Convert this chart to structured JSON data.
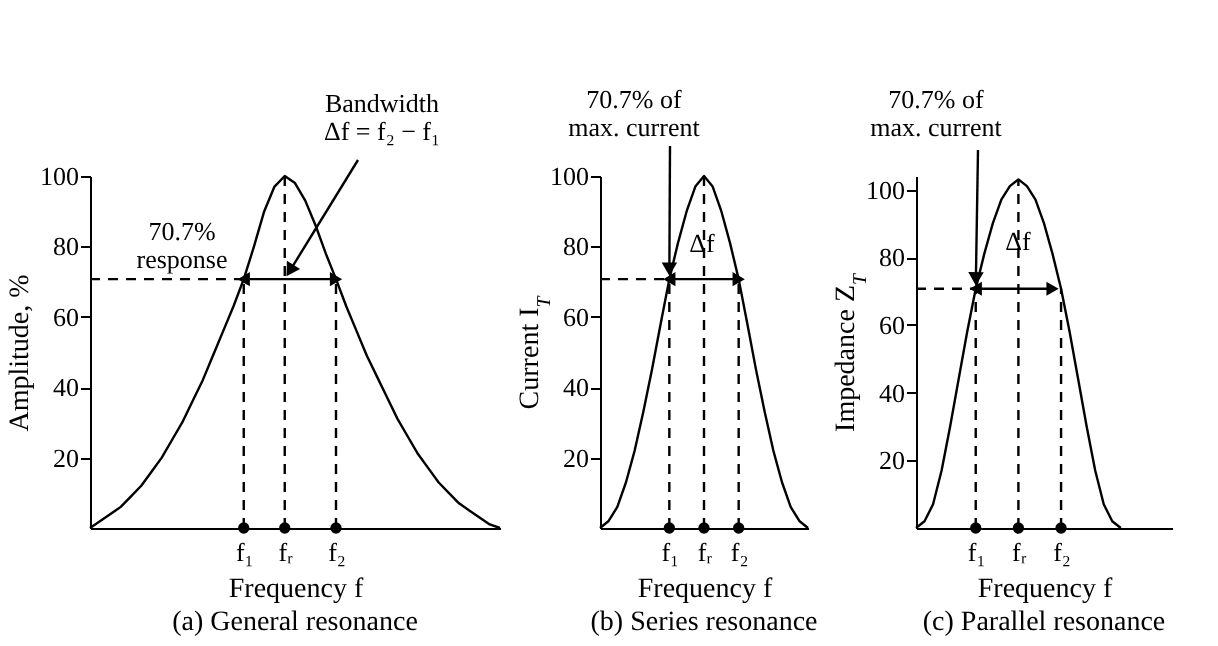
{
  "chart_data": [
    {
      "type": "line",
      "title": "(a) General resonance",
      "xlabel": "Frequency f",
      "ylabel": "Amplitude, %",
      "ylim": [
        0,
        100
      ],
      "yticks": [
        20,
        40,
        60,
        80,
        100
      ],
      "categories": [
        null,
        null,
        null,
        null,
        null,
        null,
        null,
        null,
        null,
        null,
        null,
        null,
        null,
        null,
        null,
        "f₁",
        null,
        null,
        null,
        "fᵣ",
        null,
        null,
        null,
        null,
        "f₂",
        null,
        null,
        null,
        null,
        null,
        null,
        null,
        null,
        null,
        null,
        null,
        null,
        null,
        null,
        null,
        null
      ],
      "annotations": [
        "70.7%\nresponse",
        {
          "text": "Bandwidth\nΔf = f₂ − f₁",
          "x": "fᵣ",
          "y": 70.7
        }
      ],
      "series": [
        {
          "color": "#000000",
          "values": [
            0,
            2,
            4,
            6,
            9,
            12,
            16,
            20,
            25,
            30,
            36,
            42,
            49,
            56,
            63,
            70.7,
            80,
            90,
            97,
            100,
            98,
            93,
            86,
            78,
            70.7,
            63,
            56,
            49,
            43,
            37,
            31,
            26,
            21,
            17,
            13,
            10,
            7,
            5,
            3,
            1,
            0
          ]
        },
        {
          "color": "#000000",
          "line_style": "dashed",
          "values": [
            70.7,
            70.7,
            70.7,
            70.7,
            70.7,
            70.7,
            70.7,
            70.7,
            70.7,
            70.7,
            70.7,
            70.7,
            70.7,
            70.7,
            70.7,
            70.7,
            null,
            null,
            null,
            null,
            null,
            null,
            null,
            null,
            null,
            null,
            null,
            null,
            null,
            null,
            null,
            null,
            null,
            null,
            null,
            null,
            null,
            null,
            null,
            null,
            null
          ]
        },
        {
          "color": "#000000",
          "values": [
            null,
            null,
            null,
            null,
            null,
            null,
            null,
            null,
            null,
            null,
            null,
            null,
            null,
            null,
            null,
            70.7,
            70.7,
            70.7,
            70.7,
            70.7,
            70.7,
            70.7,
            70.7,
            70.7,
            70.7,
            null,
            null,
            null,
            null,
            null,
            null,
            null,
            null,
            null,
            null,
            null,
            null,
            null,
            null,
            null,
            null
          ]
        },
        {
          "color": "#000000",
          "line_style": "dashed",
          "x": [
            "f₁",
            "f₁"
          ],
          "values": [
            0,
            70.7
          ]
        },
        {
          "color": "#000000",
          "line_style": "dashed",
          "x": [
            "fᵣ",
            "fᵣ"
          ],
          "values": [
            0,
            100
          ]
        },
        {
          "color": "#000000",
          "line_style": "dashed",
          "x": [
            "f₂",
            "f₂"
          ],
          "values": [
            0,
            70.7
          ]
        },
        {
          "type": "scatter",
          "marker": "circle",
          "color": "#000000",
          "x": [
            "f₁",
            "fᵣ",
            "f₂"
          ],
          "values": [
            0,
            0,
            0
          ]
        }
      ]
    },
    {
      "type": "line",
      "title": "(b) Series resonance",
      "xlabel": "Frequency f",
      "ylabel": "Current I$_{T}$",
      "ylim": [
        0,
        100
      ],
      "yticks": [
        20,
        40,
        60,
        80,
        100
      ],
      "categories": [
        null,
        null,
        null,
        null,
        null,
        null,
        null,
        null,
        "f₁",
        null,
        null,
        null,
        "fᵣ",
        null,
        null,
        null,
        "f₂",
        null,
        null,
        null,
        null,
        null,
        null,
        null,
        null
      ],
      "annotations": [
        {
          "text": "70.7% of\nmax. current",
          "x": "f₁",
          "y": 70.7
        },
        "Δf"
      ],
      "series": [
        {
          "color": "#000000",
          "values": [
            0,
            2,
            6,
            13,
            22,
            33,
            45,
            58,
            70.7,
            81,
            90,
            97,
            100,
            97,
            90,
            81,
            70.7,
            58,
            45,
            33,
            22,
            13,
            6,
            2,
            0
          ]
        },
        {
          "color": "#000000",
          "line_style": "dashed",
          "values": [
            70.7,
            70.7,
            70.7,
            70.7,
            70.7,
            70.7,
            70.7,
            70.7,
            70.7,
            null,
            null,
            null,
            null,
            null,
            null,
            null,
            null,
            null,
            null,
            null,
            null,
            null,
            null,
            null,
            null
          ]
        },
        {
          "color": "#000000",
          "values": [
            null,
            null,
            null,
            null,
            null,
            null,
            null,
            null,
            70.7,
            70.7,
            70.7,
            70.7,
            70.7,
            70.7,
            70.7,
            70.7,
            70.7,
            null,
            null,
            null,
            null,
            null,
            null,
            null,
            null
          ]
        },
        {
          "color": "#000000",
          "line_style": "dashed",
          "x": [
            "f₁",
            "f₁"
          ],
          "values": [
            0,
            70.7
          ]
        },
        {
          "color": "#000000",
          "line_style": "dashed",
          "x": [
            "fᵣ",
            "fᵣ"
          ],
          "values": [
            0,
            100
          ]
        },
        {
          "color": "#000000",
          "line_style": "dashed",
          "x": [
            "f₂",
            "f₂"
          ],
          "values": [
            0,
            70.7
          ]
        },
        {
          "type": "scatter",
          "marker": "circle",
          "color": "#000000",
          "x": [
            "f₁",
            "fᵣ",
            "f₂"
          ],
          "values": [
            0,
            0,
            0
          ]
        }
      ]
    },
    {
      "type": "line",
      "title": "(c) Parallel resonance",
      "xlabel": "Frequency f",
      "ylabel": "Impedance Z$_{T}$",
      "ylim": [
        0,
        104
      ],
      "yticks": [
        20,
        40,
        60,
        80,
        100
      ],
      "categories": [
        null,
        null,
        null,
        null,
        null,
        null,
        null,
        "f₁",
        null,
        null,
        null,
        null,
        "fᵣ",
        null,
        null,
        null,
        null,
        "f₂",
        null,
        null,
        null,
        null,
        null,
        null,
        null,
        null,
        null,
        null,
        null,
        null,
        null
      ],
      "annotations": [
        {
          "text": "70.7% of\nmax. current",
          "x": "f₁",
          "y": 70.7
        },
        "Δf"
      ],
      "series": [
        {
          "color": "#000000",
          "values": [
            0,
            2,
            7,
            17,
            30,
            44,
            58,
            70.7,
            81,
            90,
            97,
            101,
            103,
            101,
            97,
            90,
            81,
            70.7,
            58,
            44,
            30,
            17,
            7,
            2,
            0,
            null,
            null,
            null,
            null,
            null,
            null
          ]
        },
        {
          "color": "#000000",
          "line_style": "dashed",
          "values": [
            70.7,
            70.7,
            70.7,
            70.7,
            70.7,
            70.7,
            70.7,
            70.7,
            null,
            null,
            null,
            null,
            null,
            null,
            null,
            null,
            null,
            null,
            null,
            null,
            null,
            null,
            null,
            null,
            null,
            null,
            null,
            null,
            null,
            null,
            null
          ]
        },
        {
          "color": "#000000",
          "values": [
            null,
            null,
            null,
            null,
            null,
            null,
            null,
            70.7,
            70.7,
            70.7,
            70.7,
            70.7,
            70.7,
            70.7,
            70.7,
            70.7,
            70.7,
            null,
            null,
            null,
            null,
            null,
            null,
            null,
            null,
            null,
            null,
            null,
            null,
            null,
            null
          ]
        },
        {
          "color": "#000000",
          "line_style": "dashed",
          "x": [
            "f₁",
            "f₁"
          ],
          "values": [
            0,
            70.7
          ]
        },
        {
          "color": "#000000",
          "line_style": "dashed",
          "x": [
            "fᵣ",
            "fᵣ"
          ],
          "values": [
            0,
            103
          ]
        },
        {
          "color": "#000000",
          "line_style": "dashed",
          "x": [
            "f₂",
            "f₂"
          ],
          "values": [
            0,
            70.7
          ]
        },
        {
          "type": "scatter",
          "marker": "circle",
          "color": "#000000",
          "x": [
            "f₁",
            "fᵣ",
            "f₂"
          ],
          "values": [
            0,
            0,
            0
          ]
        }
      ]
    }
  ]
}
